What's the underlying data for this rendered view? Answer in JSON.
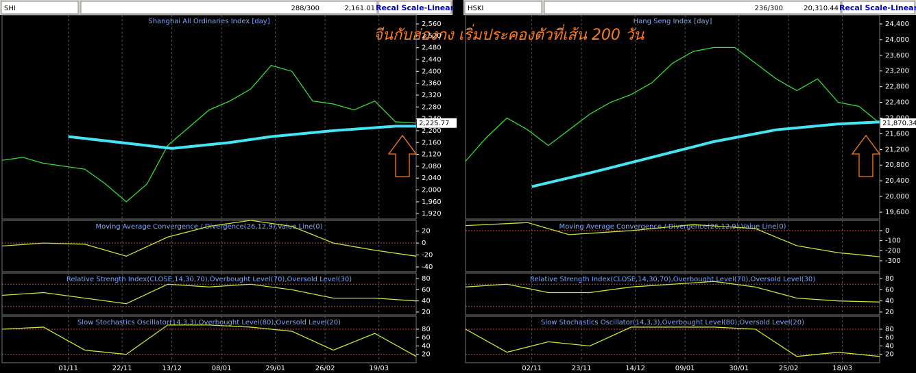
{
  "annotation": "จีนกับฮ่องกง เริ่มประคองตัวที่เส้น 200 วัน",
  "panels": [
    {
      "toolbar": {
        "symbol": "SHI",
        "count": "288/300",
        "price": "2,161.01",
        "button": "Recal Scale-Linear"
      },
      "xlim": [
        0,
        100
      ],
      "xticks": [
        {
          "value": 16,
          "label": "01/11"
        },
        {
          "value": 29,
          "label": "22/11"
        },
        {
          "value": 41,
          "label": "13/12"
        },
        {
          "value": 53,
          "label": "08/01"
        },
        {
          "value": 66,
          "label": "29/01"
        },
        {
          "value": 78,
          "label": "26/02"
        },
        {
          "value": 91,
          "label": "19/03"
        }
      ],
      "main": {
        "title": "Shanghai All Ordinaries Index [day]",
        "ylim": [
          1902,
          2590
        ],
        "yticks": [
          {
            "value": 1920,
            "label": "1,920"
          },
          {
            "value": 1960,
            "label": "1,960"
          },
          {
            "value": 2000,
            "label": "2,000"
          },
          {
            "value": 2040,
            "label": "2,040"
          },
          {
            "value": 2080,
            "label": "2,080"
          },
          {
            "value": 2120,
            "label": "2,120"
          },
          {
            "value": 2160,
            "label": "2,160"
          },
          {
            "value": 2200,
            "label": "2,200"
          },
          {
            "value": 2240,
            "label": "2,240"
          },
          {
            "value": 2280,
            "label": "2,280"
          },
          {
            "value": 2320,
            "label": "2,320"
          },
          {
            "value": 2360,
            "label": "2,360"
          },
          {
            "value": 2400,
            "label": "2,400"
          },
          {
            "value": 2440,
            "label": "2,440"
          },
          {
            "value": 2480,
            "label": "2,480"
          },
          {
            "value": 2520,
            "label": "2,520"
          },
          {
            "value": 2560,
            "label": "2,560"
          }
        ],
        "series": [
          {
            "color": "#33dd33",
            "x": [
              0,
              5,
              10,
              15,
              20,
              25,
              30,
              35,
              40,
              45,
              50,
              55,
              60,
              65,
              70,
              75,
              80,
              85,
              90,
              95,
              100
            ],
            "values": [
              2100,
              2110,
              2090,
              2080,
              2070,
              2020,
              1960,
              2020,
              2150,
              2210,
              2270,
              2300,
              2340,
              2420,
              2400,
              2300,
              2290,
              2270,
              2300,
              2230,
              2225.77
            ],
            "value_labels": [
              null,
              null,
              null,
              null,
              null,
              null,
              null,
              null,
              null,
              null,
              null,
              null,
              null,
              null,
              null,
              null,
              null,
              null,
              null,
              null,
              "2,225.77"
            ]
          },
          {
            "color": "#44e4f4",
            "width": 4,
            "x": [
              16,
              35,
              41,
              55,
              65,
              80,
              95,
              100
            ],
            "values": [
              2180,
              2150,
              2140,
              2160,
              2180,
              2200,
              2215,
              2215
            ]
          }
        ]
      },
      "macd": {
        "title": "Moving Average Convergence / Divergence(26,12,9),Value Line(0)",
        "ylim": [
          -48,
          38
        ],
        "yticks": [
          20,
          0,
          -20,
          -40
        ],
        "levels": [
          0
        ],
        "series": [
          {
            "color": "#c8e632",
            "x": [
              0,
              10,
              20,
              30,
              40,
              50,
              60,
              70,
              80,
              90,
              100
            ],
            "values": [
              -5,
              0,
              -2,
              -22,
              10,
              28,
              38,
              28,
              0,
              -12,
              -22
            ]
          }
        ]
      },
      "rsi": {
        "title": "Relative Strength Index(CLOSE,14,30,70),Overbought Level(70),Oversold Level(30)",
        "ylim": [
          15,
          90
        ],
        "yticks": [
          80,
          60,
          40,
          20
        ],
        "levels": [
          70,
          30
        ],
        "series": [
          {
            "color": "#c8e632",
            "x": [
              0,
              10,
              20,
              30,
              40,
              50,
              60,
              70,
              80,
              90,
              100
            ],
            "values": [
              50,
              55,
              45,
              35,
              70,
              65,
              70,
              60,
              45,
              45,
              40
            ]
          }
        ]
      },
      "stoch": {
        "title": "Slow Stochastics Oscillator(14,3,3),Overbought Level(80),Oversold Level(20)",
        "ylim": [
          0,
          111
        ],
        "yticks": [
          80,
          60,
          40,
          20
        ],
        "levels": [
          80,
          20
        ],
        "series": [
          {
            "color": "#c8e632",
            "x": [
              0,
              10,
              20,
              30,
              40,
              50,
              60,
              70,
              80,
              90,
              100
            ],
            "values": [
              80,
              85,
              30,
              20,
              90,
              90,
              85,
              75,
              30,
              70,
              15
            ]
          }
        ]
      }
    },
    {
      "toolbar": {
        "symbol": "HSKI",
        "count": "236/300",
        "price": "20,310.44",
        "button": "Recal Scale-Linear"
      },
      "xlim": [
        0,
        100
      ],
      "xticks": [
        {
          "value": 16,
          "label": "02/11"
        },
        {
          "value": 28,
          "label": "23/11"
        },
        {
          "value": 41,
          "label": "14/12"
        },
        {
          "value": 53,
          "label": "09/01"
        },
        {
          "value": 66,
          "label": "30/01"
        },
        {
          "value": 78,
          "label": "25/02"
        },
        {
          "value": 91,
          "label": "18/03"
        }
      ],
      "main": {
        "title": "Hang Seng Index [day]",
        "ylim": [
          19425,
          24627
        ],
        "yticks": [
          {
            "value": 19600,
            "label": "19,600"
          },
          {
            "value": 20000,
            "label": "20,000"
          },
          {
            "value": 20400,
            "label": "20,400"
          },
          {
            "value": 20800,
            "label": "20,800"
          },
          {
            "value": 21200,
            "label": "21,200"
          },
          {
            "value": 21600,
            "label": "21,600"
          },
          {
            "value": 22000,
            "label": "22,000"
          },
          {
            "value": 22400,
            "label": "22,400"
          },
          {
            "value": 22800,
            "label": "22,800"
          },
          {
            "value": 23200,
            "label": "23,200"
          },
          {
            "value": 23600,
            "label": "23,600"
          },
          {
            "value": 24000,
            "label": "24,000"
          },
          {
            "value": 24400,
            "label": "24,400"
          }
        ],
        "series": [
          {
            "color": "#33dd33",
            "x": [
              0,
              5,
              10,
              15,
              20,
              25,
              30,
              35,
              40,
              45,
              50,
              55,
              60,
              65,
              70,
              75,
              80,
              85,
              90,
              95,
              100
            ],
            "values": [
              20900,
              21500,
              22000,
              21700,
              21300,
              21700,
              22100,
              22400,
              22600,
              22900,
              23400,
              23700,
              23800,
              23800,
              23400,
              23000,
              22700,
              23000,
              22400,
              22300,
              21870.34
            ],
            "value_labels": [
              null,
              null,
              null,
              null,
              null,
              null,
              null,
              null,
              null,
              null,
              null,
              null,
              null,
              null,
              null,
              null,
              null,
              null,
              null,
              null,
              "21,870.34"
            ]
          },
          {
            "color": "#44e4f4",
            "width": 4,
            "x": [
              16,
              30,
              45,
              60,
              75,
              90,
              100
            ],
            "values": [
              20250,
              20600,
              21000,
              21400,
              21700,
              21850,
              21900
            ]
          }
        ]
      },
      "macd": {
        "title": "Moving Average Convergence / Divergence(26,12,9),Value Line(0)",
        "ylim": [
          -409,
          102
        ],
        "yticks": [
          0,
          -100,
          -200,
          -300
        ],
        "levels": [
          0
        ],
        "series": [
          {
            "color": "#c8e632",
            "x": [
              0,
              15,
              25,
              40,
              55,
              70,
              80,
              90,
              100
            ],
            "values": [
              50,
              80,
              -40,
              0,
              60,
              20,
              -150,
              -220,
              -260
            ]
          }
        ]
      },
      "rsi": {
        "title": "Relative Strength Index(CLOSE,14,30,70),Overbought Level(70),Oversold Level(30)",
        "ylim": [
          15,
          90
        ],
        "yticks": [
          80,
          60,
          40,
          20
        ],
        "levels": [
          70,
          30
        ],
        "series": [
          {
            "color": "#c8e632",
            "x": [
              0,
              10,
              20,
              30,
              40,
              50,
              60,
              70,
              80,
              90,
              100
            ],
            "values": [
              65,
              70,
              55,
              55,
              65,
              70,
              75,
              65,
              45,
              40,
              38
            ]
          }
        ]
      },
      "stoch": {
        "title": "Slow Stochastics Oscillator(14,3,3),Overbought Level(80),Oversold Level(20)",
        "ylim": [
          0,
          111
        ],
        "yticks": [
          80,
          60,
          40,
          20
        ],
        "levels": [
          80,
          20
        ],
        "series": [
          {
            "color": "#c8e632",
            "x": [
              0,
              10,
              20,
              30,
              40,
              50,
              60,
              70,
              80,
              90,
              100
            ],
            "values": [
              80,
              25,
              50,
              40,
              85,
              85,
              85,
              80,
              15,
              25,
              15
            ]
          }
        ]
      }
    }
  ]
}
